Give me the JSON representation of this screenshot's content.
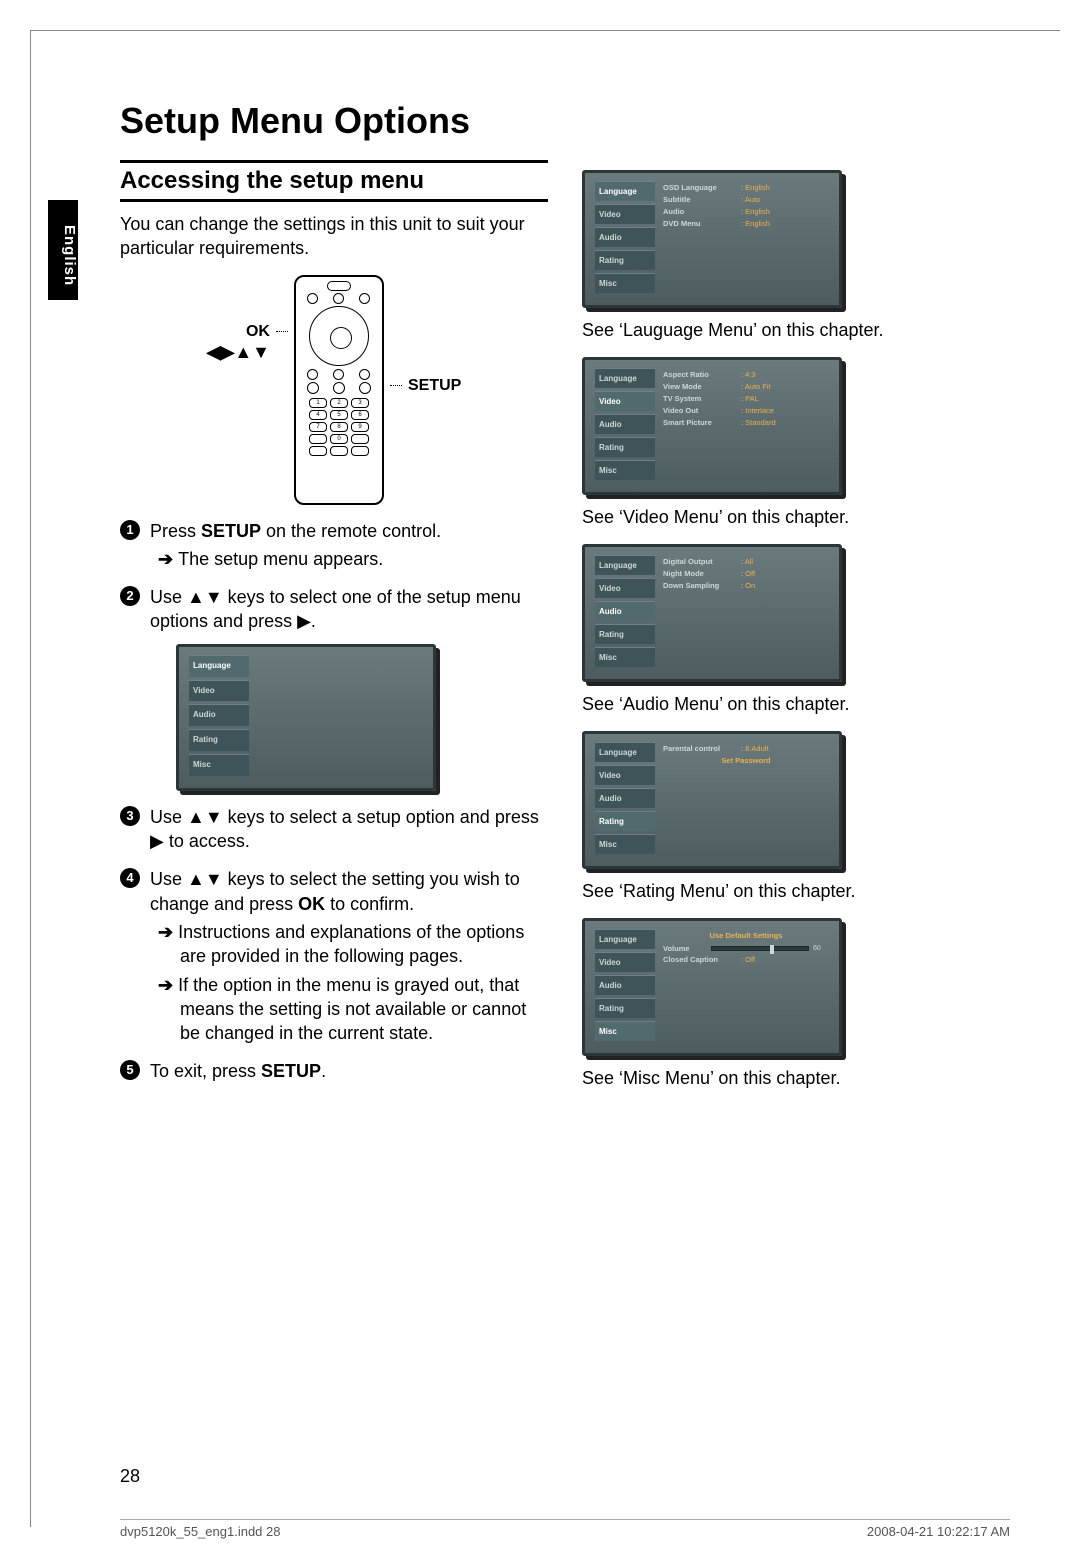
{
  "page": {
    "title": "Setup Menu Options",
    "section": "Accessing the setup menu",
    "intro": "You can change the settings in this unit to suit your particular requirements.",
    "lang_tab": "English",
    "page_number": "28"
  },
  "remote": {
    "ok_label": "OK",
    "arrows_label": "◀▶▲▼",
    "setup_label": "SETUP"
  },
  "steps": {
    "s1_a": "Press ",
    "s1_b": "SETUP",
    "s1_c": " on the remote control.",
    "s1_sub": "The setup menu appears.",
    "s2": "Use ▲▼ keys to select one of the setup menu options and press ▶.",
    "s3": "Use ▲▼ keys to select a setup option and press ▶ to access.",
    "s4_a": "Use ▲▼ keys to select the setting you wish to change and press ",
    "s4_b": "OK",
    "s4_c": " to confirm.",
    "s4_sub1": "Instructions and explanations of the options are provided in the following pages.",
    "s4_sub2": "If the option in the menu is grayed out, that means the setting is not available or cannot be changed in the current state.",
    "s5_a": "To exit, press ",
    "s5_b": "SETUP",
    "s5_c": "."
  },
  "captions": {
    "lang": "See ‘Lauguage Menu’ on this chapter.",
    "video": "See ‘Video Menu’ on this chapter.",
    "audio": "See ‘Audio Menu’ on this chapter.",
    "rating": "See ‘Rating Menu’ on this chapter.",
    "misc": "See ‘Misc Menu’ on this chapter."
  },
  "osd": {
    "tabs": [
      "Language",
      "Video",
      "Audio",
      "Rating",
      "Misc"
    ],
    "language": {
      "active_tab": 0,
      "rows": [
        {
          "k": "OSD Language",
          "v": "English"
        },
        {
          "k": "Subtitle",
          "v": "Auto"
        },
        {
          "k": "Audio",
          "v": "English"
        },
        {
          "k": "DVD Menu",
          "v": "English"
        }
      ]
    },
    "video": {
      "active_tab": 1,
      "rows": [
        {
          "k": "Aspect Ratio",
          "v": "4:3"
        },
        {
          "k": "View Mode",
          "v": "Auto Fit"
        },
        {
          "k": "TV System",
          "v": "PAL"
        },
        {
          "k": "Video Out",
          "v": "Interlace"
        },
        {
          "k": "Smart Picture",
          "v": "Standard"
        }
      ]
    },
    "audio": {
      "active_tab": 2,
      "rows": [
        {
          "k": "Digital Output",
          "v": "All"
        },
        {
          "k": "Night  Mode",
          "v": "Off"
        },
        {
          "k": "Down Sampling",
          "v": "On"
        }
      ]
    },
    "rating": {
      "active_tab": 3,
      "rows": [
        {
          "k": "Parental control",
          "v": "8.Adult"
        }
      ],
      "center": "Set Password"
    },
    "misc": {
      "active_tab": 4,
      "center": "Use Default Settings",
      "volume_label": "Volume",
      "volume_value": "60",
      "rows": [
        {
          "k": "Closed Caption",
          "v": "Off"
        }
      ]
    }
  },
  "footer": {
    "file": "dvp5120k_55_eng1.indd   28",
    "stamp": "2008-04-21   10:22:17 AM"
  },
  "colors": {
    "osd_bg_top": "#6a7a7d",
    "osd_bg_bottom": "#4d5c5e",
    "osd_border": "#2a3638",
    "osd_tab": "#3e5458",
    "osd_tab_active": "#506a6e",
    "osd_text": "#cfd7d6",
    "osd_value": "#e9b050"
  }
}
